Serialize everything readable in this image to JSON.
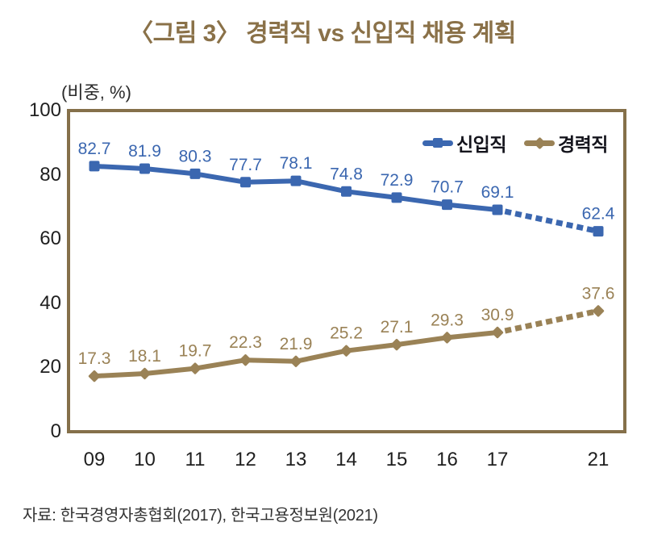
{
  "title": "〈그림 3〉 경력직 vs 신입직 채용 계획",
  "unit_label": "(비중, %)",
  "source": "자료: 한국경영자총협회(2017), 한국고용정보원(2021)",
  "legend": {
    "items": [
      {
        "label": "신입직",
        "color": "#3b67b0",
        "marker": "square"
      },
      {
        "label": "경력직",
        "color": "#9a8256",
        "marker": "diamond"
      }
    ]
  },
  "colors": {
    "plot_border": "#85704a",
    "title_text": "#8a7148",
    "axis_text": "#1f1f1f",
    "legend_text": "#15151d",
    "series_new_hire": "#3b67b0",
    "series_experienced": "#9a8256"
  },
  "chart_data": {
    "type": "line",
    "title": "〈그림 3〉 경력직 vs 신입직 채용 계획",
    "ylabel": "(비중, %)",
    "xlabel": "",
    "ylim": [
      0,
      100
    ],
    "yticks": [
      0,
      20,
      40,
      60,
      80,
      100
    ],
    "grid": false,
    "legend_position": "top-right-inside",
    "categories": [
      "09",
      "10",
      "11",
      "12",
      "13",
      "14",
      "15",
      "16",
      "17",
      "21"
    ],
    "x_slots": [
      0,
      1,
      2,
      3,
      4,
      5,
      6,
      7,
      8,
      10
    ],
    "solid_until_index": 8,
    "dotted_last_segment": true,
    "series": [
      {
        "name": "신입직",
        "color": "#3b67b0",
        "marker": "square",
        "values": [
          82.7,
          81.9,
          80.3,
          77.7,
          78.1,
          74.8,
          72.9,
          70.7,
          69.1,
          62.4
        ]
      },
      {
        "name": "경력직",
        "color": "#9a8256",
        "marker": "diamond",
        "values": [
          17.3,
          18.1,
          19.7,
          22.3,
          21.9,
          25.2,
          27.1,
          29.3,
          30.9,
          37.6
        ]
      }
    ]
  }
}
